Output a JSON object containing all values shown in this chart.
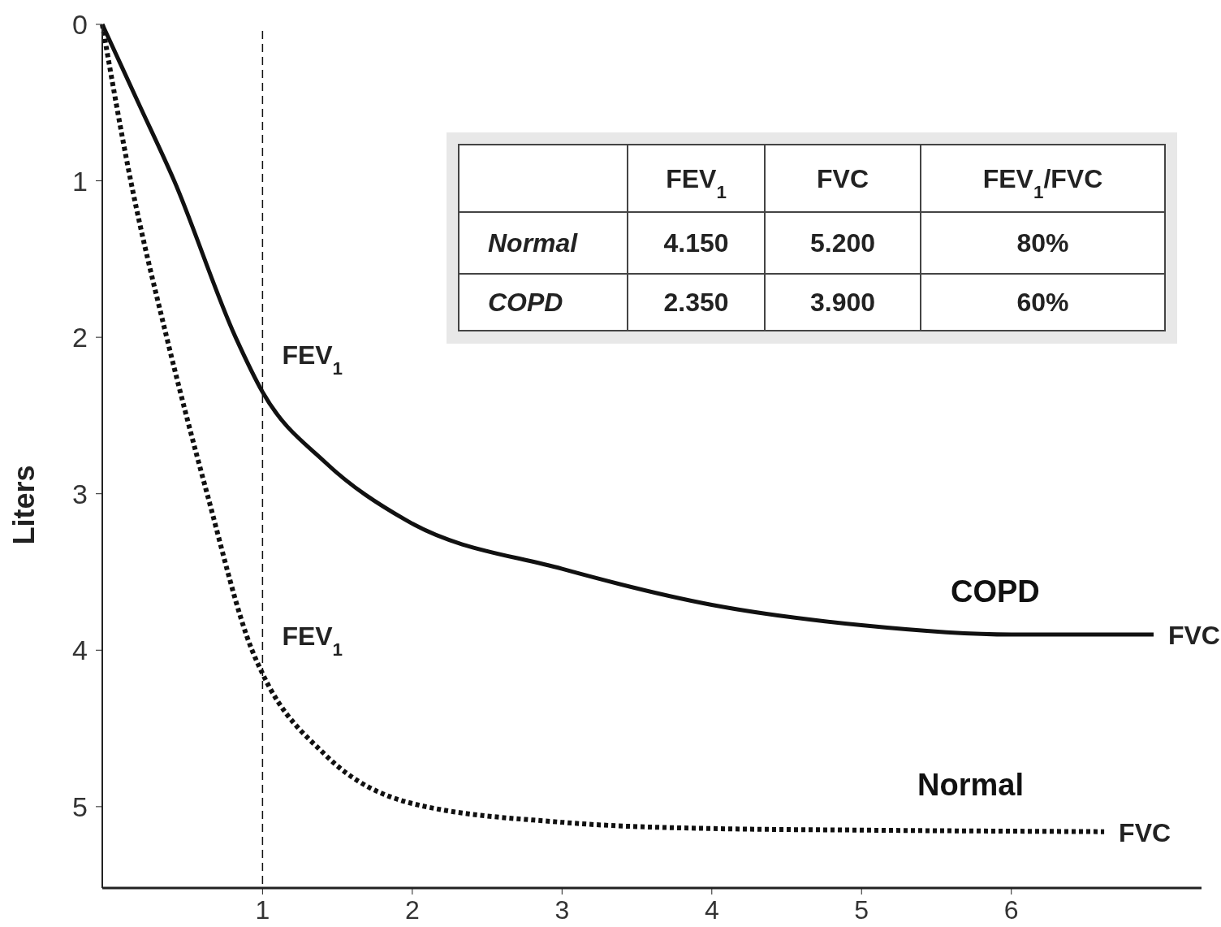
{
  "chart_data": {
    "type": "line",
    "ylabel": "Liters",
    "xlim": [
      -0.07,
      7.27
    ],
    "ylim": [
      5.52,
      0
    ],
    "xticks": [
      1,
      2,
      3,
      4,
      5,
      6
    ],
    "yticks": [
      0,
      1,
      2,
      3,
      4,
      5
    ],
    "series": [
      {
        "name": "COPD",
        "color": "#111111",
        "line_style": "solid",
        "x": [
          -0.07,
          0.17,
          0.41,
          0.82,
          1.0,
          1.42,
          1.96,
          3.0,
          4.0,
          5.0,
          6.0,
          6.95
        ],
        "values": [
          0,
          0.5,
          1.0,
          2.0,
          2.35,
          2.8,
          3.17,
          3.48,
          3.71,
          3.84,
          3.9,
          3.9
        ]
      },
      {
        "name": "Normal",
        "color": "#111111",
        "line_style": "dotted",
        "x": [
          -0.07,
          0.12,
          0.36,
          0.63,
          0.93,
          1.0,
          1.42,
          2.0,
          3.0,
          4.0,
          5.0,
          6.62
        ],
        "values": [
          0,
          1.0,
          2.0,
          3.0,
          4.0,
          4.15,
          4.67,
          4.98,
          5.1,
          5.14,
          5.15,
          5.16
        ]
      }
    ],
    "ref_lines": [
      {
        "axis": "x",
        "value": 1,
        "line_style": "dashed",
        "color": "#111111"
      }
    ],
    "annotations": [
      {
        "text": "FEV$_{1}$",
        "x": 1,
        "y": 2.35
      },
      {
        "text": "FEV$_{1}$",
        "x": 1,
        "y": 4.15
      },
      {
        "text": "FVC",
        "x": 6.95,
        "y": 3.9
      },
      {
        "text": "FVC",
        "x": 6.62,
        "y": 5.16
      },
      "FEV$_{1}$",
      "FVC",
      "FEV$_{1}$/FVC",
      "Normal",
      "4.150",
      "5.200",
      "80%",
      "COPD",
      "2.350",
      "3.900",
      "60%"
    ]
  }
}
